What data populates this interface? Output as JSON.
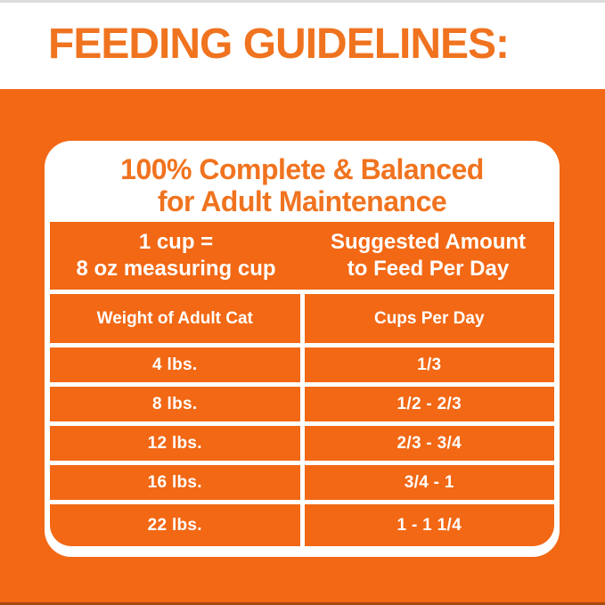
{
  "colors": {
    "orange": "#F26814",
    "orange_text": "#F0731F",
    "white": "#FFFFFF"
  },
  "header": {
    "title": "FEEDING GUIDELINES:"
  },
  "card": {
    "heading_line1": "100% Complete & Balanced",
    "heading_line2": "for Adult Maintenance"
  },
  "table": {
    "measure_note": {
      "line1": "1 cup =",
      "line2": "8 oz measuring cup"
    },
    "suggested_note": {
      "line1": "Suggested Amount",
      "line2": "to Feed Per Day"
    },
    "col_headers": [
      "Weight of Adult Cat",
      "Cups Per Day"
    ],
    "rows": [
      {
        "weight": "4 lbs.",
        "cups": "1/3"
      },
      {
        "weight": "8 lbs.",
        "cups": "1/2 - 2/3"
      },
      {
        "weight": "12 lbs.",
        "cups": "2/3 - 3/4"
      },
      {
        "weight": "16 lbs.",
        "cups": "3/4 - 1"
      },
      {
        "weight": "22 lbs.",
        "cups": "1 - 1 1/4"
      }
    ]
  }
}
